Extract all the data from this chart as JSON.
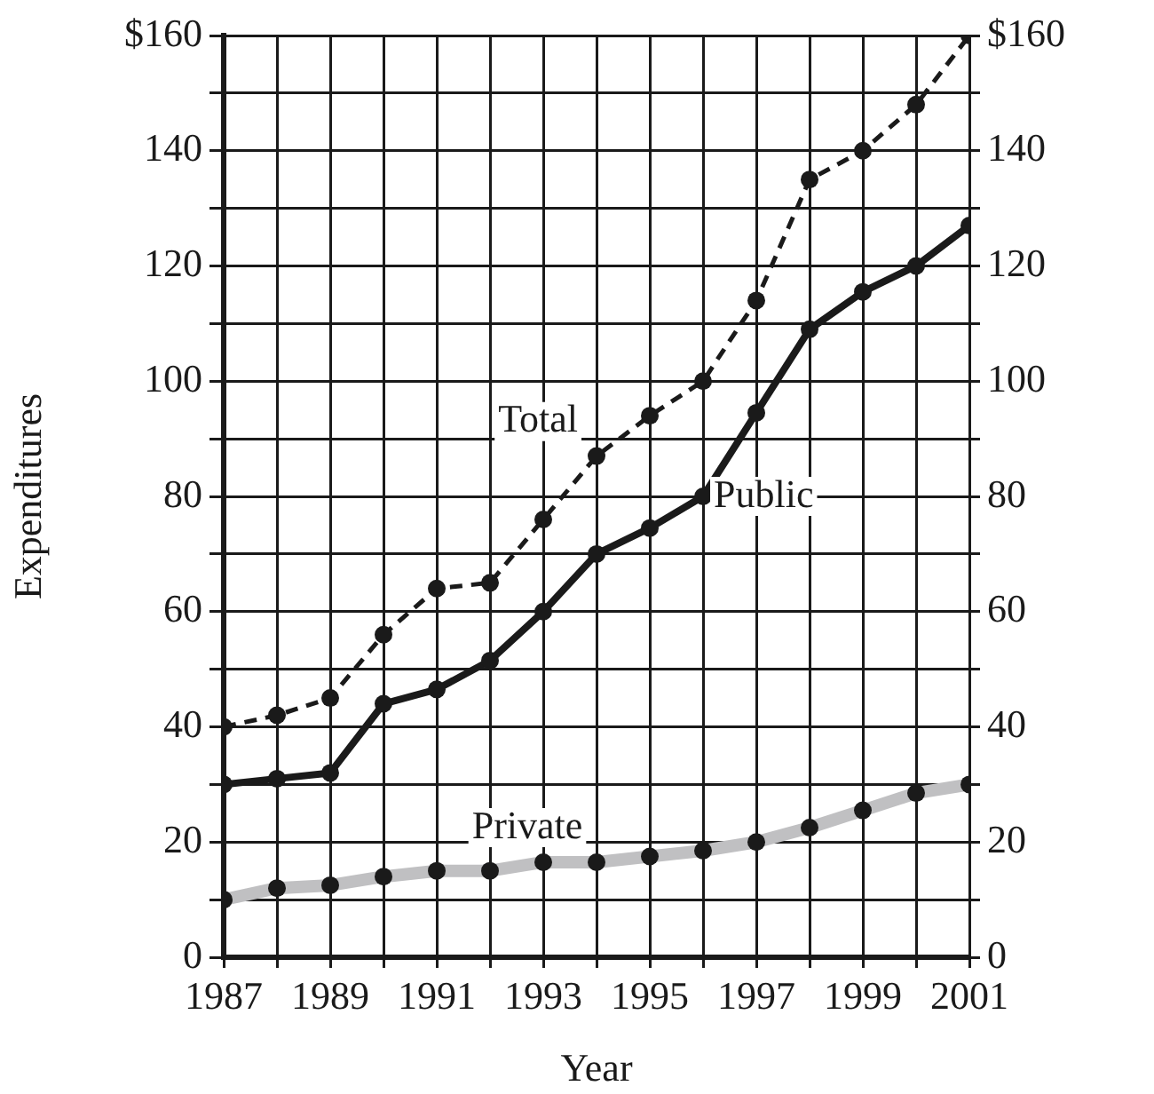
{
  "chart_data": {
    "type": "line",
    "xlabel": "Year",
    "ylabel": "Expenditures",
    "x": [
      1987,
      1988,
      1989,
      1990,
      1991,
      1992,
      1993,
      1994,
      1995,
      1996,
      1997,
      1998,
      1999,
      2000,
      2001
    ],
    "series": [
      {
        "name": "Total",
        "color": "#1a1a1a",
        "line_style": "dashed",
        "values": [
          40,
          42,
          45,
          56,
          64,
          65,
          76,
          87,
          94,
          100,
          114,
          135,
          140,
          148,
          160
        ]
      },
      {
        "name": "Public",
        "color": "#1a1a1a",
        "line_style": "solid",
        "values": [
          30,
          31,
          32,
          44,
          46.5,
          51.5,
          60,
          70,
          74.5,
          80,
          94.5,
          109,
          115.5,
          120,
          127
        ]
      },
      {
        "name": "Private",
        "color": "#c0c0c2",
        "line_style": "solid",
        "values": [
          10,
          12,
          12.5,
          14,
          15,
          15,
          16.5,
          16.5,
          17.5,
          18.5,
          20,
          22.5,
          25.5,
          28.5,
          30
        ]
      }
    ],
    "marker": "circle",
    "grid": true,
    "legend": false,
    "xlim": [
      1987,
      2001
    ],
    "xticks": [
      1987,
      {
        "value": 1988,
        "label": null
      },
      1989,
      {
        "value": 1990,
        "label": null
      },
      1991,
      {
        "value": 1992,
        "label": null
      },
      1993,
      {
        "value": 1994,
        "label": null
      },
      1995,
      {
        "value": 1996,
        "label": null
      },
      1997,
      {
        "value": 1998,
        "label": null
      },
      1999,
      {
        "value": 2000,
        "label": null
      },
      2001
    ],
    "ylim": [
      0,
      160
    ],
    "yticks": [
      0,
      {
        "value": 10,
        "label": null
      },
      20,
      {
        "value": 30,
        "label": null
      },
      40,
      {
        "value": 50,
        "label": null
      },
      60,
      {
        "value": 70,
        "label": null
      },
      80,
      {
        "value": 90,
        "label": null
      },
      100,
      {
        "value": 110,
        "label": null
      },
      120,
      {
        "value": 130,
        "label": null
      },
      140,
      {
        "value": 150,
        "label": null
      },
      {
        "value": 160,
        "label": "$160"
      }
    ],
    "y2lim": [
      0,
      160
    ],
    "y2ticks": [
      0,
      {
        "value": 10,
        "label": null
      },
      20,
      {
        "value": 30,
        "label": null
      },
      40,
      {
        "value": 50,
        "label": null
      },
      60,
      {
        "value": 70,
        "label": null
      },
      80,
      {
        "value": 90,
        "label": null
      },
      100,
      {
        "value": 110,
        "label": null
      },
      120,
      {
        "value": 130,
        "label": null
      },
      140,
      {
        "value": 150,
        "label": null
      },
      {
        "value": 160,
        "label": "$160"
      }
    ]
  }
}
